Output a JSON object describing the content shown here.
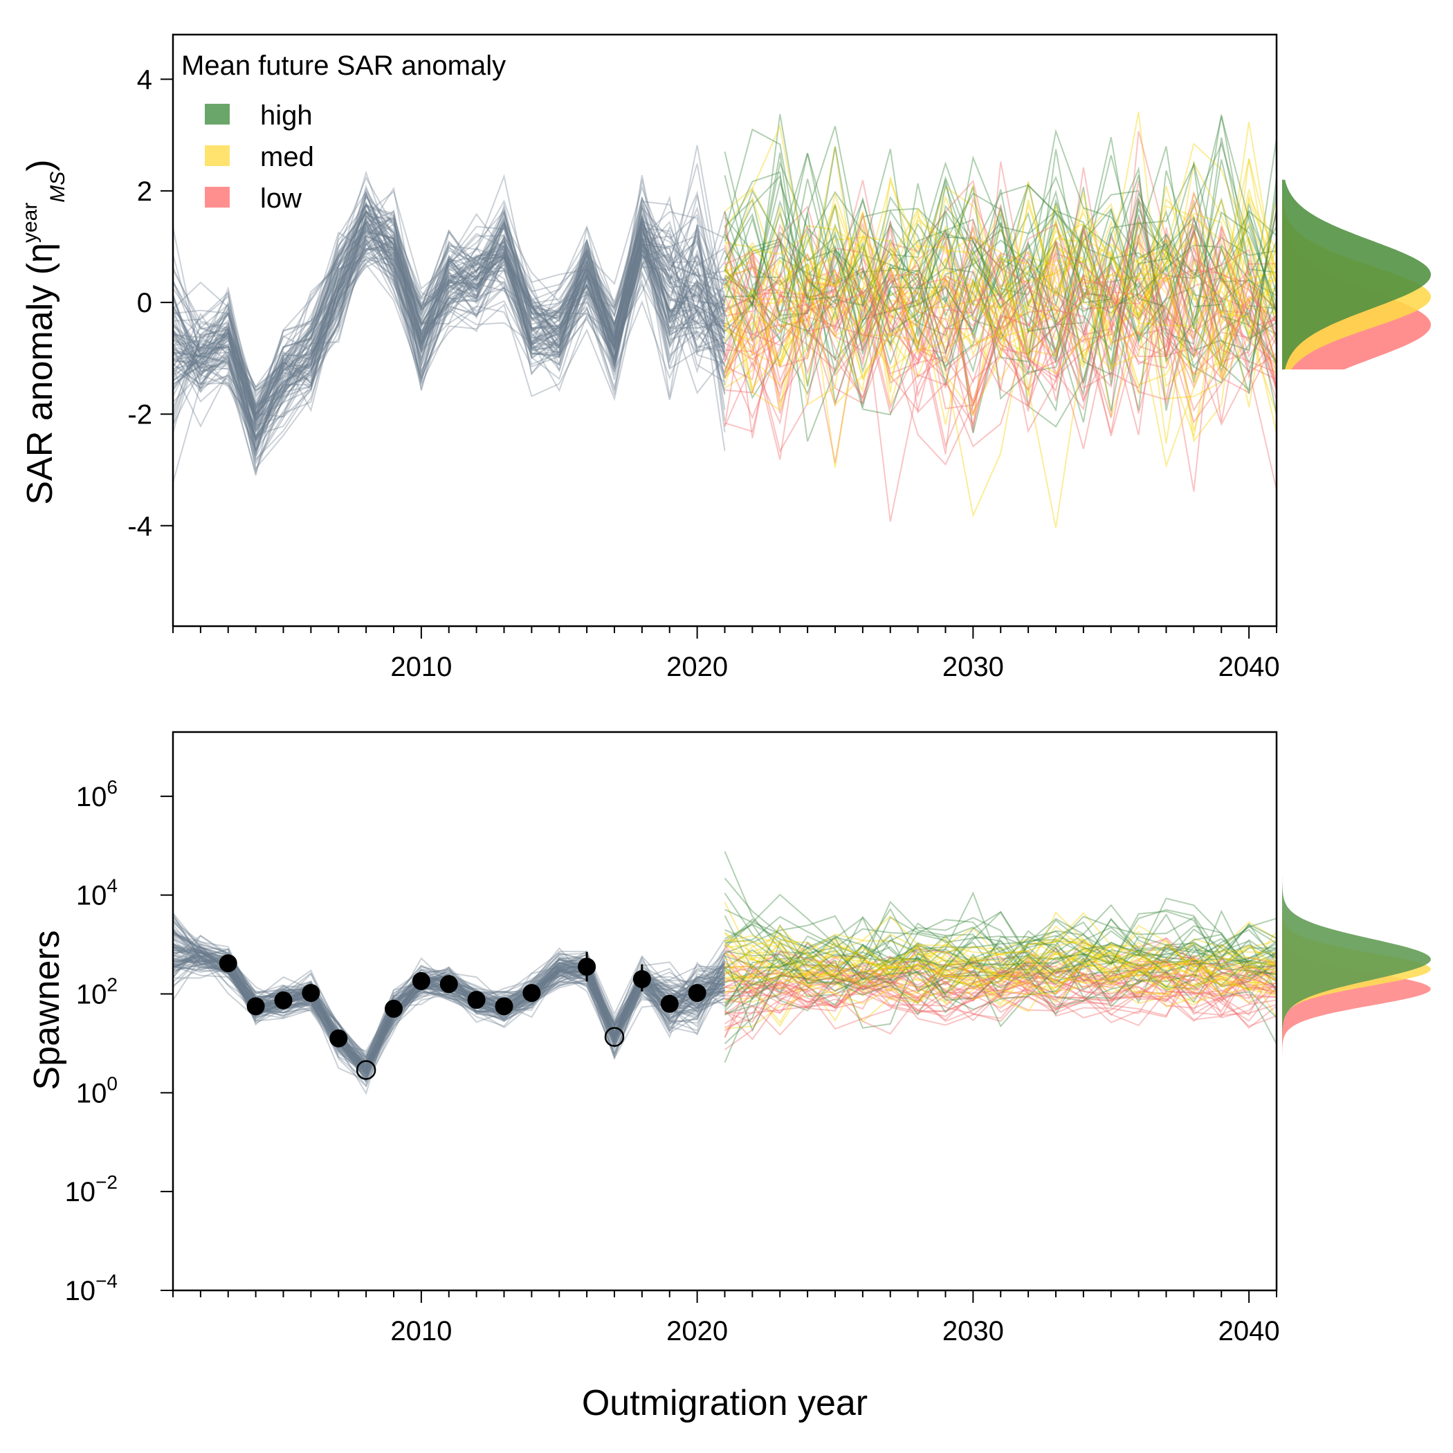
{
  "chart_data": [
    {
      "type": "line",
      "panel": "top",
      "ylabel_main": "SAR anomaly (",
      "ylabel_symbol": "η",
      "ylabel_sup": "year",
      "ylabel_sub": "MS",
      "ylabel_close": ")",
      "xlim": [
        2001,
        2041
      ],
      "ylim": [
        -5.8,
        4.8
      ],
      "x_ticks": [
        2010,
        2020,
        2030,
        2040
      ],
      "x_tick_labels": [
        "2010",
        "2020",
        "2030",
        "2040"
      ],
      "y_ticks": [
        -4,
        -2,
        0,
        2,
        4
      ],
      "y_tick_labels": [
        "-4",
        "-2",
        "0",
        "2",
        "4"
      ],
      "legend": {
        "title": "Mean future SAR anomaly",
        "position": "top-left",
        "entries": [
          {
            "label": "high",
            "color": "#6aa56a"
          },
          {
            "label": "med",
            "color": "#ffe36e"
          },
          {
            "label": "low",
            "color": "#ff8f8f"
          }
        ]
      },
      "historical": {
        "color": "#6b7b8c",
        "x": [
          2001,
          2002,
          2003,
          2004,
          2005,
          2006,
          2007,
          2008,
          2009,
          2010,
          2011,
          2012,
          2013,
          2014,
          2015,
          2016,
          2017,
          2018,
          2019,
          2020,
          2021
        ],
        "median": [
          -0.8,
          -1.0,
          -0.6,
          -2.2,
          -1.3,
          -0.9,
          0.3,
          1.4,
          0.9,
          -0.6,
          0.4,
          0.4,
          0.9,
          -0.4,
          -0.6,
          0.5,
          -0.8,
          1.1,
          0.2,
          0.3,
          -0.4
        ],
        "spread": 0.55
      },
      "projection": {
        "x_start": 2021,
        "x_end": 2041,
        "scenarios": [
          {
            "name": "high",
            "color": "#3f8a3f",
            "mean": 0.5,
            "sd": 1.1
          },
          {
            "name": "med",
            "color": "#f5d300",
            "mean": 0.1,
            "sd": 1.0
          },
          {
            "name": "low",
            "color": "#f26b6b",
            "mean": -0.4,
            "sd": 1.1
          }
        ]
      },
      "grid": false
    },
    {
      "type": "line",
      "panel": "bottom",
      "scale": "log10",
      "ylabel": "Spawners",
      "xlabel": "Outmigration year",
      "xlim": [
        2001,
        2041
      ],
      "ylim_log10": [
        -4,
        7.3
      ],
      "x_ticks": [
        2010,
        2020,
        2030,
        2040
      ],
      "x_tick_labels": [
        "2010",
        "2020",
        "2030",
        "2040"
      ],
      "y_tick_base": "10",
      "y_tick_exponents": [
        "−4",
        "−2",
        "0",
        "2",
        "4",
        "6"
      ],
      "y_tick_log10": [
        -4,
        -2,
        0,
        2,
        4,
        6
      ],
      "observed": {
        "x": [
          2003,
          2004,
          2005,
          2006,
          2007,
          2009,
          2010,
          2011,
          2012,
          2013,
          2014,
          2016,
          2018,
          2019,
          2020
        ],
        "log10_spawners": [
          2.62,
          1.75,
          1.87,
          2.02,
          1.1,
          1.7,
          2.26,
          2.2,
          1.88,
          1.75,
          2.02,
          2.55,
          2.3,
          1.8,
          2.02
        ]
      },
      "observed_open": {
        "x": [
          2008,
          2017
        ],
        "log10_spawners": [
          0.46,
          1.13
        ]
      },
      "observed_error_bars": [
        {
          "x": 2016,
          "low": 2.25,
          "high": 2.85
        },
        {
          "x": 2018,
          "low": 2.05,
          "high": 2.6
        }
      ],
      "historical": {
        "color": "#6b7b8c",
        "x": [
          2001,
          2002,
          2003,
          2004,
          2005,
          2006,
          2007,
          2008,
          2009,
          2010,
          2011,
          2012,
          2013,
          2014,
          2015,
          2016,
          2017,
          2018,
          2019,
          2020,
          2021
        ],
        "median_log10": [
          2.9,
          2.8,
          2.62,
          1.75,
          1.87,
          2.02,
          1.1,
          0.46,
          1.7,
          2.26,
          2.2,
          1.88,
          1.75,
          2.02,
          2.5,
          2.5,
          1.13,
          2.3,
          1.8,
          2.02,
          2.3
        ],
        "spread": 0.22
      },
      "projection": {
        "x_start": 2021,
        "x_end": 2041,
        "scenarios": [
          {
            "name": "high",
            "color": "#3f8a3f",
            "mean_log10": 2.7,
            "sd": 0.75
          },
          {
            "name": "med",
            "color": "#f5d300",
            "mean_log10": 2.5,
            "sd": 0.6
          },
          {
            "name": "low",
            "color": "#f26b6b",
            "mean_log10": 2.1,
            "sd": 0.6
          }
        ]
      },
      "grid": false
    }
  ]
}
